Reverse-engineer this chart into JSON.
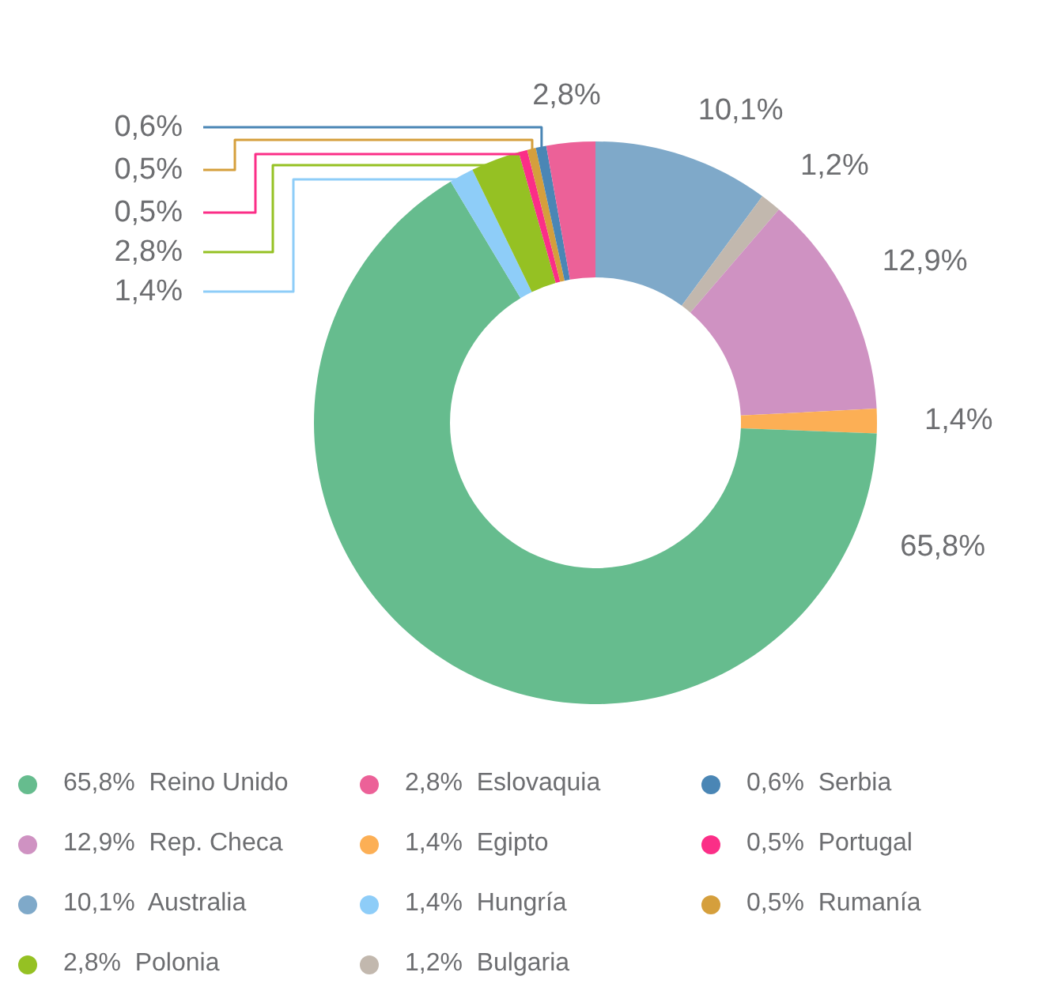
{
  "chart_data": {
    "type": "donut",
    "categories": [
      "Australia",
      "Bulgaria",
      "Rep. Checa",
      "Egipto",
      "Reino Unido",
      "Hungría",
      "Polonia",
      "Portugal",
      "Rumanía",
      "Serbia",
      "Eslovaquia"
    ],
    "values": [
      10.1,
      1.2,
      12.9,
      1.4,
      65.8,
      1.4,
      2.8,
      0.5,
      0.5,
      0.6,
      2.8
    ],
    "value_labels": [
      "10,1%",
      "1,2%",
      "12,9%",
      "1,4%",
      "65,8%",
      "1,4%",
      "2,8%",
      "0,5%",
      "0,5%",
      "0,6%",
      "2,8%"
    ],
    "colors": [
      "#7fa9c9",
      "#c2b8ae",
      "#cf92c2",
      "#fcaf55",
      "#66bc8e",
      "#8ecdf8",
      "#95c123",
      "#fb2e87",
      "#d59f3c",
      "#4a86b5",
      "#ec6198"
    ],
    "legend": "bottom"
  }
}
